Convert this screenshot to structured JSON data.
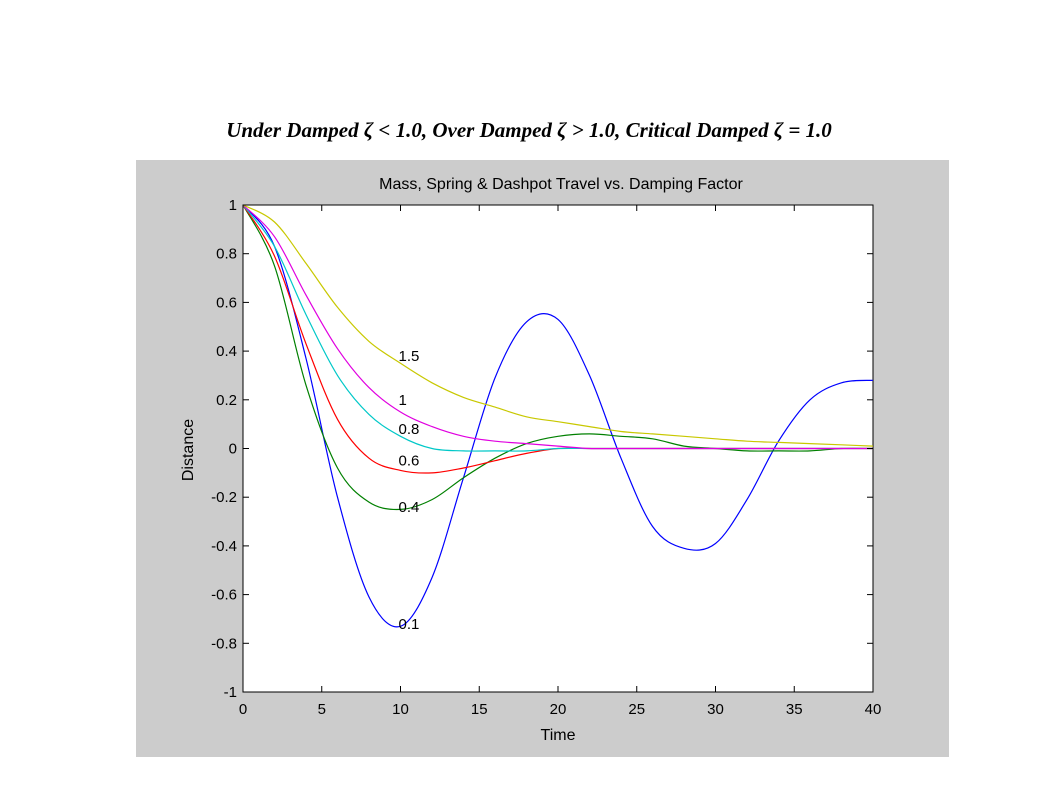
{
  "slide": {
    "title_parts": [
      "Under Damped ",
      "ζ",
      " < 1.0, Over Damped ",
      "ζ",
      " > 1.0, Critical Damped ",
      "ζ",
      " = 1.0"
    ]
  },
  "chart_data": {
    "type": "line",
    "title": "Mass, Spring & Dashpot Travel vs. Damping Factor",
    "xlabel": "Time",
    "ylabel": "Distance",
    "xlim": [
      0,
      40
    ],
    "ylim": [
      -1,
      1
    ],
    "xticks": [
      0,
      5,
      10,
      15,
      20,
      25,
      30,
      35,
      40
    ],
    "yticks": [
      -1,
      -0.8,
      -0.6,
      -0.4,
      -0.2,
      0,
      0.2,
      0.4,
      0.6,
      0.8,
      1
    ],
    "x": [
      0,
      2,
      4,
      6,
      8,
      10,
      12,
      14,
      16,
      18,
      20,
      22,
      24,
      26,
      28,
      30,
      32,
      34,
      36,
      38,
      40
    ],
    "series": [
      {
        "label": "0.1",
        "color": "#0000ff",
        "values": [
          1.0,
          0.83,
          0.37,
          -0.2,
          -0.61,
          -0.73,
          -0.53,
          -0.12,
          0.29,
          0.52,
          0.53,
          0.3,
          -0.04,
          -0.32,
          -0.41,
          -0.39,
          -0.21,
          0.03,
          0.2,
          0.27,
          0.28
        ]
      },
      {
        "label": "0.4",
        "color": "#008000",
        "values": [
          1.0,
          0.75,
          0.26,
          -0.08,
          -0.22,
          -0.25,
          -0.21,
          -0.12,
          -0.04,
          0.02,
          0.05,
          0.06,
          0.05,
          0.04,
          0.01,
          0.0,
          -0.01,
          -0.01,
          -0.01,
          0.0,
          0.0
        ]
      },
      {
        "label": "0.6",
        "color": "#ff0000",
        "values": [
          1.0,
          0.79,
          0.43,
          0.12,
          -0.04,
          -0.09,
          -0.1,
          -0.08,
          -0.05,
          -0.02,
          0.0,
          0.0,
          0.0,
          0.0,
          0.0,
          0.0,
          0.0,
          0.0,
          0.0,
          0.0,
          0.0
        ]
      },
      {
        "label": "0.8",
        "color": "#00c8c8",
        "values": [
          1.0,
          0.83,
          0.55,
          0.3,
          0.14,
          0.05,
          0.0,
          -0.01,
          -0.01,
          -0.01,
          0.0,
          0.0,
          0.0,
          0.0,
          0.0,
          0.0,
          0.0,
          0.0,
          0.0,
          0.0,
          0.0
        ]
      },
      {
        "label": "1",
        "color": "#e000e0",
        "values": [
          1.0,
          0.87,
          0.63,
          0.41,
          0.25,
          0.15,
          0.09,
          0.05,
          0.03,
          0.02,
          0.01,
          0.0,
          0.0,
          0.0,
          0.0,
          0.0,
          0.0,
          0.0,
          0.0,
          0.0,
          0.0
        ]
      },
      {
        "label": "1.5",
        "color": "#c8c800",
        "values": [
          1.0,
          0.93,
          0.76,
          0.58,
          0.44,
          0.35,
          0.27,
          0.21,
          0.17,
          0.13,
          0.11,
          0.09,
          0.07,
          0.06,
          0.05,
          0.04,
          0.03,
          0.025,
          0.02,
          0.015,
          0.01
        ]
      }
    ],
    "annotations": [
      {
        "text": "1.5",
        "x": 10,
        "y": 0.38
      },
      {
        "text": "1",
        "x": 10,
        "y": 0.2
      },
      {
        "text": "0.8",
        "x": 10,
        "y": 0.08
      },
      {
        "text": "0.6",
        "x": 10,
        "y": -0.05
      },
      {
        "text": "0.4",
        "x": 10,
        "y": -0.24
      },
      {
        "text": "0.1",
        "x": 10,
        "y": -0.72
      }
    ]
  }
}
